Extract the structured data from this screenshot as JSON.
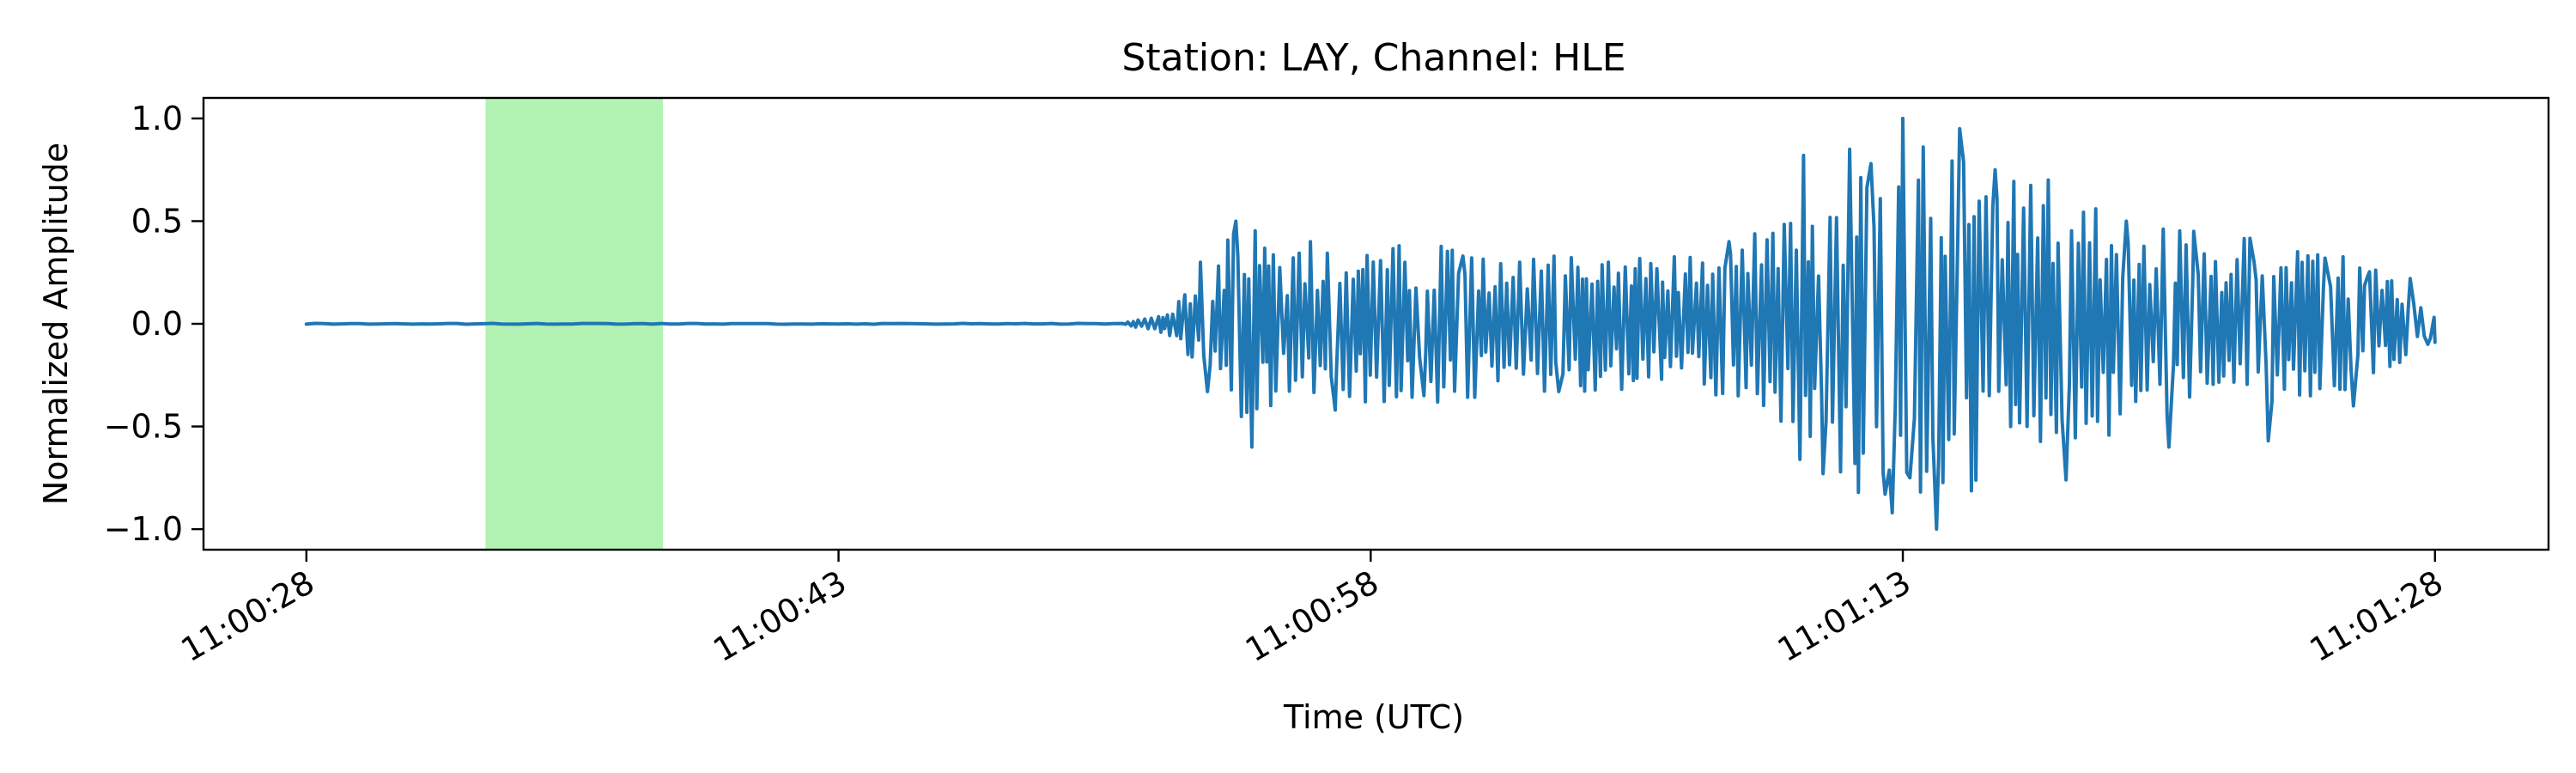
{
  "chart_data": {
    "type": "line",
    "title": "Station: LAY, Channel: HLE",
    "xlabel": "Time (UTC)",
    "ylabel": "Normalized Amplitude",
    "x_unit": "seconds after 11:00:28 UTC",
    "xlim": [
      -2.9,
      63.2
    ],
    "ylim": [
      -1.1,
      1.1
    ],
    "x_ticks": [
      {
        "value": 0,
        "label": "11:00:28"
      },
      {
        "value": 15,
        "label": "11:00:43"
      },
      {
        "value": 30,
        "label": "11:00:58"
      },
      {
        "value": 45,
        "label": "11:01:13"
      },
      {
        "value": 60,
        "label": "11:01:28"
      }
    ],
    "y_ticks": [
      {
        "value": 1.0,
        "label": "1.0"
      },
      {
        "value": 0.5,
        "label": "0.5"
      },
      {
        "value": 0.0,
        "label": "0.0"
      },
      {
        "value": -0.5,
        "label": "−0.5"
      },
      {
        "value": -1.0,
        "label": "−1.0"
      }
    ],
    "highlight": {
      "x_start": 5.05,
      "x_end": 10.05,
      "color": "#b2f2b2"
    },
    "grid": false,
    "series": [
      {
        "color": "#1f77b4",
        "x_start": 0,
        "x_end": 60,
        "envelope": [
          [
            0,
            0.002
          ],
          [
            23,
            0.002
          ],
          [
            23.3,
            0.015
          ],
          [
            24.2,
            0.05
          ],
          [
            25.4,
            0.25
          ],
          [
            26.3,
            0.5
          ],
          [
            28,
            0.35
          ],
          [
            31,
            0.4
          ],
          [
            34,
            0.35
          ],
          [
            37,
            0.33
          ],
          [
            40,
            0.38
          ],
          [
            42.3,
            0.55
          ],
          [
            43.5,
            0.85
          ],
          [
            44.6,
            0.95
          ],
          [
            46,
            0.9
          ],
          [
            48,
            0.75
          ],
          [
            50,
            0.6
          ],
          [
            53,
            0.45
          ],
          [
            56,
            0.4
          ],
          [
            58,
            0.3
          ],
          [
            60,
            0.08
          ]
        ],
        "peaks": [
          [
            25.2,
            0.3
          ],
          [
            25.4,
            -0.33
          ],
          [
            26.2,
            0.5
          ],
          [
            26.65,
            -0.6
          ],
          [
            28.3,
            0.4
          ],
          [
            29,
            -0.42
          ],
          [
            30.8,
            0.38
          ],
          [
            31.5,
            -0.35
          ],
          [
            32.6,
            0.33
          ],
          [
            34.2,
            0.3
          ],
          [
            35.3,
            -0.33
          ],
          [
            36.7,
            0.3
          ],
          [
            38.2,
            -0.27
          ],
          [
            40.1,
            0.4
          ],
          [
            40.9,
            -0.34
          ],
          [
            42.2,
            0.82
          ],
          [
            42.1,
            -0.66
          ],
          [
            42.75,
            -0.73
          ],
          [
            43.5,
            0.85
          ],
          [
            43.65,
            -0.68
          ],
          [
            44.1,
            0.78
          ],
          [
            44.5,
            -0.83
          ],
          [
            44.7,
            -0.92
          ],
          [
            45,
            1.0
          ],
          [
            45.2,
            -0.75
          ],
          [
            45.95,
            -1.0
          ],
          [
            46.6,
            0.95
          ],
          [
            47.6,
            0.75
          ],
          [
            48.5,
            -0.5
          ],
          [
            49.1,
            0.7
          ],
          [
            49.6,
            -0.76
          ],
          [
            51.3,
            0.5
          ],
          [
            52.5,
            -0.6
          ],
          [
            53.2,
            0.45
          ],
          [
            54.9,
            0.3
          ],
          [
            55.3,
            -0.57
          ],
          [
            56.9,
            0.32
          ],
          [
            57.7,
            -0.4
          ],
          [
            58.1,
            0.23
          ],
          [
            59.3,
            0.22
          ],
          [
            59.8,
            -0.1
          ]
        ],
        "end_value": -0.09
      }
    ]
  }
}
